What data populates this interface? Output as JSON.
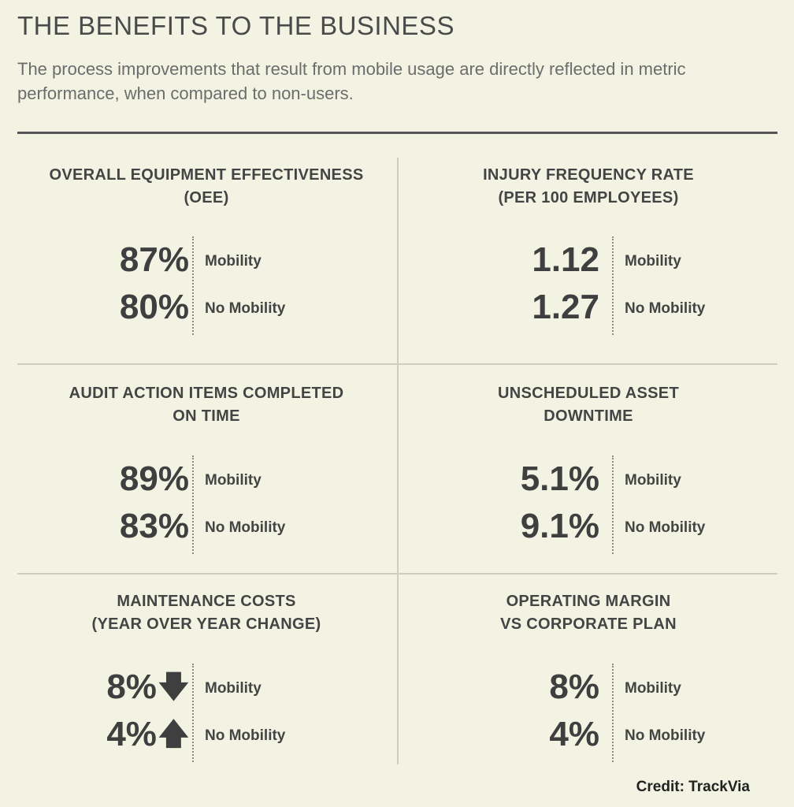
{
  "header": {
    "title": "THE BENEFITS TO THE BUSINESS",
    "subtitle": "The process improvements that result from mobile usage are directly reflected in metric performance, when compared to non-users."
  },
  "labels": {
    "mobility": "Mobility",
    "no_mobility": "No Mobility"
  },
  "metrics": [
    {
      "title_line1": "OVERALL EQUIPMENT EFFECTIVENESS",
      "title_line2": "(OEE)",
      "mobility": "87%",
      "no_mobility": "80%"
    },
    {
      "title_line1": "INJURY FREQUENCY RATE",
      "title_line2": "(PER 100 EMPLOYEES)",
      "mobility": "1.12",
      "no_mobility": "1.27"
    },
    {
      "title_line1": "AUDIT ACTION ITEMS COMPLETED",
      "title_line2": "ON TIME",
      "mobility": "89%",
      "no_mobility": "83%"
    },
    {
      "title_line1": "UNSCHEDULED ASSET",
      "title_line2": "DOWNTIME",
      "mobility": "5.1%",
      "no_mobility": "9.1%"
    },
    {
      "title_line1": "MAINTENANCE COSTS",
      "title_line2": "(YEAR OVER YEAR CHANGE)",
      "mobility": "8%",
      "mobility_arrow": "down-arrow-icon",
      "no_mobility": "4%",
      "no_mobility_arrow": "up-arrow-icon"
    },
    {
      "title_line1": "OPERATING MARGIN",
      "title_line2": "VS CORPORATE PLAN",
      "mobility": "8%",
      "no_mobility": "4%"
    }
  ],
  "footer": {
    "credit": "Credit: TrackVia"
  }
}
